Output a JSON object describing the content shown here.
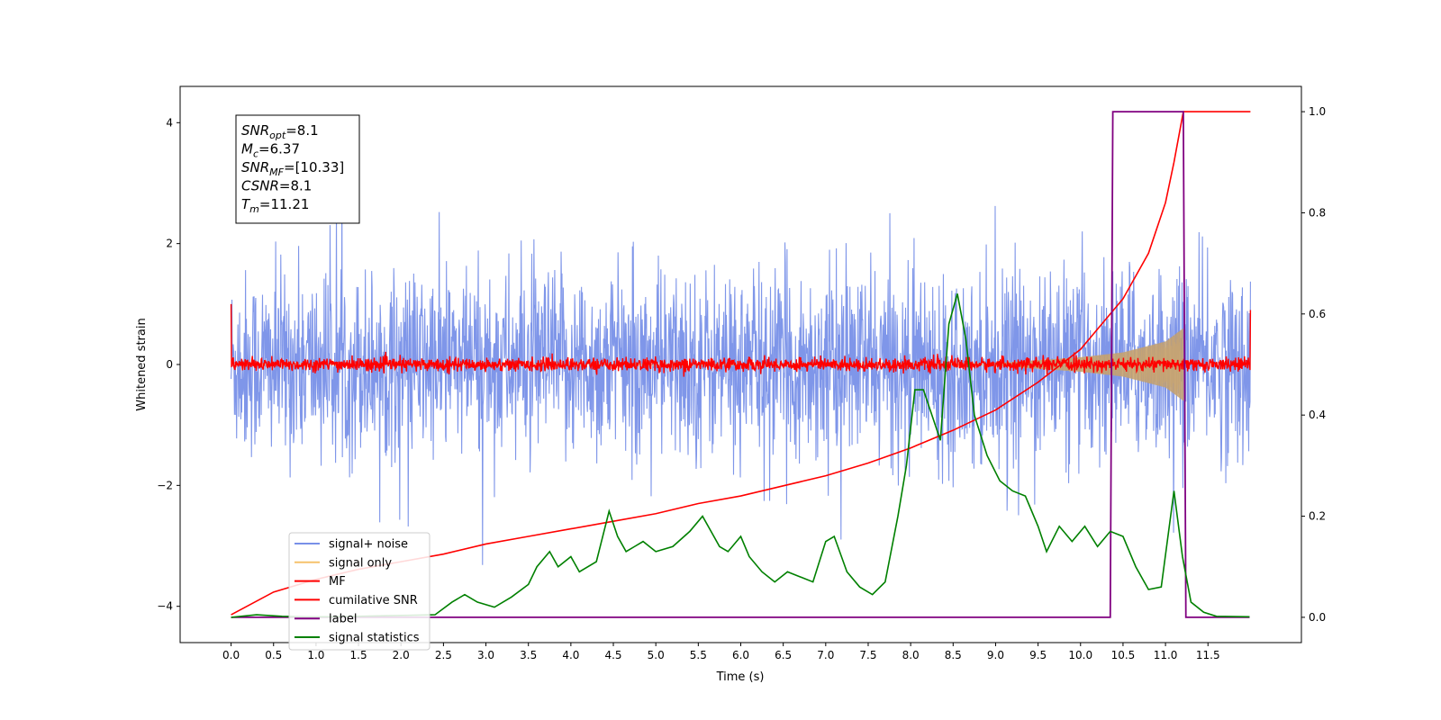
{
  "chart_data": {
    "type": "line",
    "xlabel": "Time (s)",
    "ylabel": "Whitened strain",
    "xlim": [
      -0.6,
      12.6
    ],
    "ylim": [
      -4.6,
      4.6
    ],
    "y2lim": [
      -0.05,
      1.05
    ],
    "x_ticks": [
      "0.0",
      "0.5",
      "1.0",
      "1.5",
      "2.0",
      "2.5",
      "3.0",
      "3.5",
      "4.0",
      "4.5",
      "5.0",
      "5.5",
      "6.0",
      "6.5",
      "7.0",
      "7.5",
      "8.0",
      "8.5",
      "9.0",
      "9.5",
      "10.0",
      "10.5",
      "11.0",
      "11.5"
    ],
    "y_ticks": [
      "4",
      "2",
      "0",
      "−2",
      "−4"
    ],
    "y2_ticks": [
      "1.0",
      "0.8",
      "0.6",
      "0.4",
      "0.2",
      "0.0"
    ],
    "annotation": [
      {
        "sym": "SNR",
        "sub": "opt",
        "val": "=8.1"
      },
      {
        "sym": "M",
        "sub": "c",
        "val": "=6.37"
      },
      {
        "sym": "SNR",
        "sub": "MF",
        "val": "=[10.33]"
      },
      {
        "sym": "CSNR",
        "sub": "",
        "val": "=8.1"
      },
      {
        "sym": "T",
        "sub": "m",
        "val": "=11.21"
      }
    ],
    "legend_position": "lower-left",
    "series": [
      {
        "name": "signal+ noise",
        "color": "#7890e8",
        "axis": "left",
        "kind": "noise",
        "x_range": [
          0,
          12
        ],
        "typical_amplitude": 1.4,
        "max_amplitude": 3.9
      },
      {
        "name": "signal only",
        "color": "#f5c26b",
        "axis": "left",
        "kind": "chirp",
        "x_range": [
          0,
          11.21
        ],
        "envelope": {
          "x": [
            9.0,
            10.0,
            10.5,
            11.0,
            11.21
          ],
          "y": [
            0.02,
            0.12,
            0.2,
            0.38,
            0.6
          ]
        }
      },
      {
        "name": "MF",
        "color": "#ff0000",
        "axis": "left",
        "kind": "noise",
        "x_range": [
          0,
          12
        ],
        "typical_amplitude": 0.1,
        "max_amplitude": 0.35,
        "edge_values": [
          1.0,
          0.9
        ]
      },
      {
        "name": "cumilative SNR",
        "color": "#ff0000",
        "axis": "right",
        "x": [
          0.0,
          0.5,
          1.0,
          1.5,
          2.0,
          2.5,
          3.0,
          3.5,
          4.0,
          4.5,
          5.0,
          5.5,
          6.0,
          6.5,
          7.0,
          7.5,
          8.0,
          8.5,
          9.0,
          9.5,
          10.0,
          10.5,
          10.8,
          11.0,
          11.1,
          11.21,
          12.0
        ],
        "y": [
          0.005,
          0.05,
          0.075,
          0.095,
          0.11,
          0.125,
          0.145,
          0.16,
          0.175,
          0.19,
          0.205,
          0.225,
          0.24,
          0.26,
          0.28,
          0.305,
          0.335,
          0.37,
          0.41,
          0.465,
          0.53,
          0.63,
          0.72,
          0.82,
          0.9,
          1.0,
          1.0
        ]
      },
      {
        "name": "label",
        "color": "#800080",
        "axis": "right",
        "x": [
          0.0,
          10.35,
          10.38,
          11.21,
          11.24,
          11.99
        ],
        "y": [
          0.0,
          0.0,
          1.0,
          1.0,
          0.0,
          0.0
        ]
      },
      {
        "name": "signal statistics",
        "color": "#008000",
        "axis": "right",
        "x": [
          0.0,
          0.3,
          0.6,
          0.9,
          1.2,
          1.5,
          1.8,
          2.1,
          2.4,
          2.6,
          2.75,
          2.9,
          3.1,
          3.3,
          3.5,
          3.6,
          3.75,
          3.85,
          4.0,
          4.1,
          4.3,
          4.45,
          4.55,
          4.65,
          4.75,
          4.85,
          5.0,
          5.2,
          5.4,
          5.55,
          5.65,
          5.75,
          5.85,
          6.0,
          6.1,
          6.25,
          6.4,
          6.55,
          6.7,
          6.85,
          7.0,
          7.1,
          7.25,
          7.4,
          7.55,
          7.7,
          7.85,
          7.95,
          8.05,
          8.15,
          8.25,
          8.35,
          8.45,
          8.55,
          8.65,
          8.75,
          8.9,
          9.05,
          9.2,
          9.35,
          9.5,
          9.6,
          9.75,
          9.9,
          10.05,
          10.2,
          10.35,
          10.5,
          10.65,
          10.8,
          10.95,
          11.1,
          11.2,
          11.3,
          11.45,
          11.6,
          11.99
        ],
        "y": [
          0.0,
          0.005,
          0.002,
          0.001,
          0.001,
          0.002,
          0.003,
          0.004,
          0.005,
          0.03,
          0.045,
          0.03,
          0.02,
          0.04,
          0.065,
          0.1,
          0.13,
          0.1,
          0.12,
          0.09,
          0.11,
          0.21,
          0.16,
          0.13,
          0.14,
          0.15,
          0.13,
          0.14,
          0.17,
          0.2,
          0.17,
          0.14,
          0.13,
          0.16,
          0.12,
          0.09,
          0.07,
          0.09,
          0.08,
          0.07,
          0.15,
          0.16,
          0.09,
          0.06,
          0.045,
          0.07,
          0.2,
          0.3,
          0.45,
          0.45,
          0.4,
          0.35,
          0.58,
          0.64,
          0.55,
          0.4,
          0.32,
          0.27,
          0.25,
          0.24,
          0.18,
          0.13,
          0.18,
          0.15,
          0.18,
          0.14,
          0.17,
          0.16,
          0.1,
          0.055,
          0.06,
          0.25,
          0.12,
          0.03,
          0.01,
          0.002,
          0.001
        ]
      }
    ]
  }
}
